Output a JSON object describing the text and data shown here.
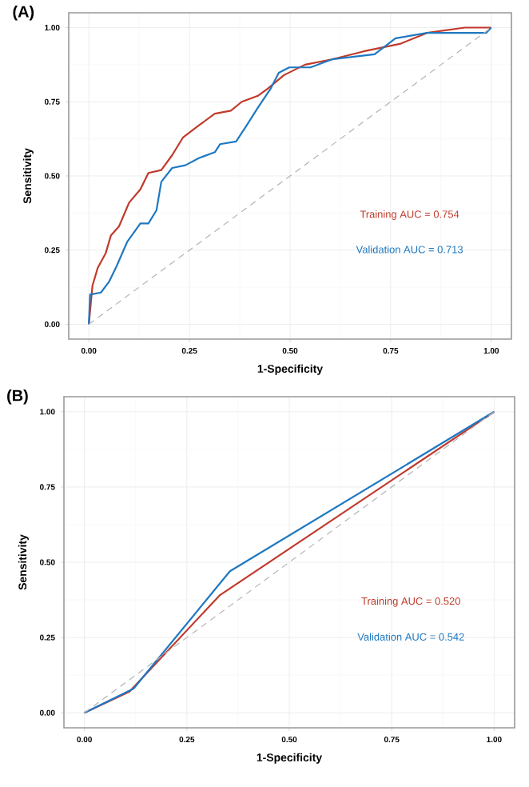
{
  "chart_data": [
    {
      "type": "line",
      "title": "(A)",
      "xlabel": "1-Specificity",
      "ylabel": "Sensitivity",
      "xlim": [
        -0.05,
        1.05
      ],
      "ylim": [
        -0.05,
        1.05
      ],
      "xticks": [
        {
          "value": 0,
          "label": "0.00"
        },
        {
          "value": 0.25,
          "label": "0.25"
        },
        {
          "value": 0.5,
          "label": "0.50"
        },
        {
          "value": 0.75,
          "label": "0.75"
        },
        {
          "value": 1,
          "label": "1.00"
        }
      ],
      "yticks": [
        {
          "value": 0,
          "label": "0.00"
        },
        {
          "value": 0.25,
          "label": "0.25"
        },
        {
          "value": 0.5,
          "label": "0.50"
        },
        {
          "value": 0.75,
          "label": "0.75"
        },
        {
          "value": 1,
          "label": "1.00"
        }
      ],
      "grid": true,
      "series": [
        {
          "color": "#c0392b",
          "x": [
            0,
            0.009,
            0.022,
            0.042,
            0.055,
            0.075,
            0.1,
            0.128,
            0.148,
            0.18,
            0.207,
            0.234,
            0.273,
            0.313,
            0.353,
            0.38,
            0.42,
            0.445,
            0.485,
            0.537,
            0.604,
            0.683,
            0.775,
            0.84,
            0.934,
            1
          ],
          "values": [
            0,
            0.13,
            0.19,
            0.24,
            0.3,
            0.33,
            0.41,
            0.455,
            0.51,
            0.52,
            0.57,
            0.63,
            0.67,
            0.71,
            0.72,
            0.75,
            0.77,
            0.795,
            0.84,
            0.875,
            0.893,
            0.92,
            0.946,
            0.982,
            1,
            1
          ]
        },
        {
          "color": "#1f78c1",
          "x": [
            0,
            0.003,
            0.03,
            0.05,
            0.069,
            0.095,
            0.128,
            0.148,
            0.168,
            0.18,
            0.207,
            0.24,
            0.273,
            0.313,
            0.326,
            0.366,
            0.392,
            0.42,
            0.452,
            0.472,
            0.498,
            0.551,
            0.604,
            0.71,
            0.762,
            0.84,
            0.987,
            1
          ],
          "values": [
            0,
            0.1,
            0.107,
            0.143,
            0.196,
            0.277,
            0.34,
            0.34,
            0.384,
            0.48,
            0.527,
            0.536,
            0.56,
            0.58,
            0.607,
            0.616,
            0.67,
            0.73,
            0.795,
            0.848,
            0.866,
            0.866,
            0.893,
            0.91,
            0.964,
            0.982,
            0.982,
            1
          ]
        },
        {
          "color": "#b3b3b3",
          "line_style": "dashed",
          "x": [
            0,
            1
          ],
          "values": [
            0,
            1
          ]
        }
      ],
      "annotations": [
        "Training AUC = 0.754",
        "Validation AUC = 0.713"
      ]
    },
    {
      "type": "line",
      "title": "(B)",
      "xlabel": "1-Specificity",
      "ylabel": "Sensitivity",
      "xlim": [
        -0.05,
        1.05
      ],
      "ylim": [
        -0.05,
        1.05
      ],
      "xticks": [
        {
          "value": 0,
          "label": "0.00"
        },
        {
          "value": 0.25,
          "label": "0.25"
        },
        {
          "value": 0.5,
          "label": "0.50"
        },
        {
          "value": 0.75,
          "label": "0.75"
        },
        {
          "value": 1,
          "label": "1.00"
        }
      ],
      "yticks": [
        {
          "value": 0,
          "label": "0.00"
        },
        {
          "value": 0.25,
          "label": "0.25"
        },
        {
          "value": 0.5,
          "label": "0.50"
        },
        {
          "value": 0.75,
          "label": "0.75"
        },
        {
          "value": 1,
          "label": "1.00"
        }
      ],
      "grid": true,
      "series": [
        {
          "color": "#c0392b",
          "x": [
            0,
            0.11,
            0.33,
            1
          ],
          "values": [
            0,
            0.07,
            0.39,
            1
          ]
        },
        {
          "color": "#1f78c1",
          "x": [
            0,
            0.12,
            0.355,
            1
          ],
          "values": [
            0,
            0.08,
            0.47,
            1
          ]
        },
        {
          "color": "#b3b3b3",
          "line_style": "dashed",
          "x": [
            0,
            1
          ],
          "values": [
            0,
            1
          ]
        }
      ],
      "annotations": [
        "Training AUC = 0.520",
        "Validation AUC = 0.542"
      ]
    }
  ]
}
